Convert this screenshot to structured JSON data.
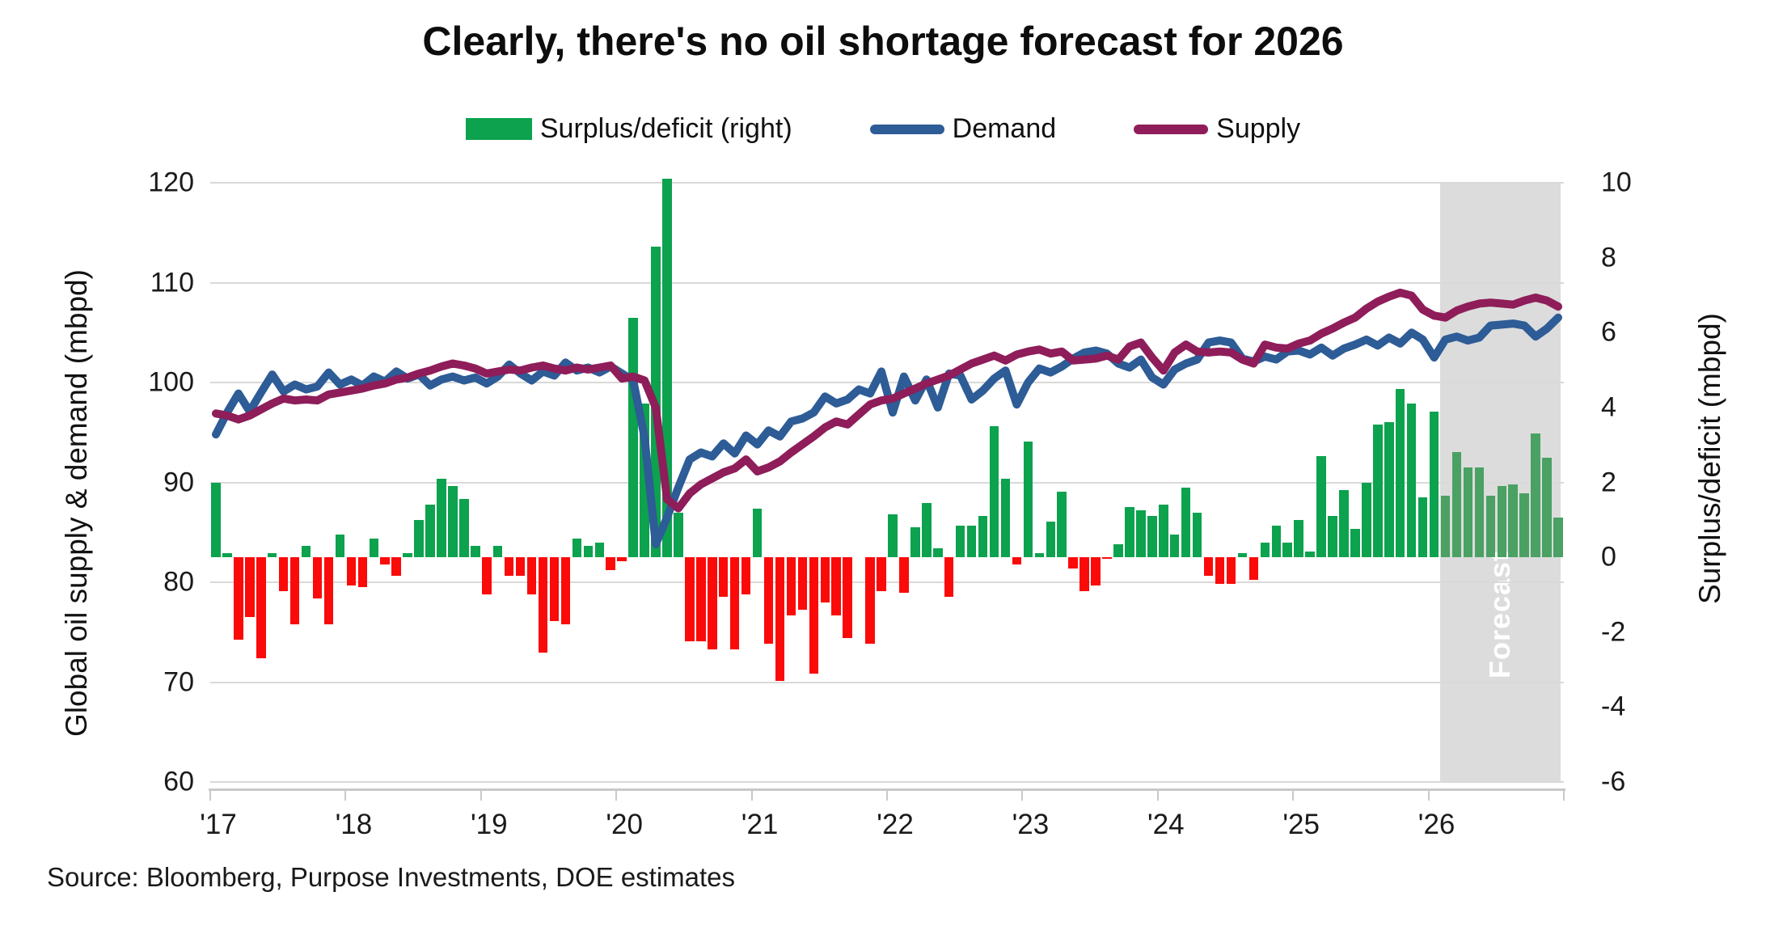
{
  "title": "Clearly, there's no oil shortage forecast for 2026",
  "source": "Source: Bloomberg, Purpose Investments, DOE estimates",
  "legend": {
    "surplus_label": "Surplus/deficit (right)",
    "demand_label": "Demand",
    "supply_label": "Supply"
  },
  "axes": {
    "left_title": "Global oil supply & demand (mbpd)",
    "right_title": "Surplus/deficit (mbpd)",
    "left_ticks": [
      120,
      110,
      100,
      90,
      80,
      70,
      60
    ],
    "right_ticks": [
      10,
      8,
      6,
      4,
      2,
      0,
      -2,
      -4,
      -6
    ],
    "x_tick_labels": [
      "'17",
      "'18",
      "'19",
      "'20",
      "'21",
      "'22",
      "'23",
      "'24",
      "'25",
      "'26"
    ]
  },
  "forecast": {
    "label": "Forecast",
    "start_month_index": 109
  },
  "colors": {
    "green": "#0ca24e",
    "green_forecast": "#4aa163",
    "red": "#fb0a0a",
    "blue": "#2d5c96",
    "purple": "#8e1d5a",
    "band": "#dcdcdc",
    "gridline": "#d9d9d9",
    "axis": "#c9c9c9"
  },
  "chart_data": {
    "type": "combo",
    "x_unit": "month",
    "x_start": "2017-01",
    "x_end": "2026-12",
    "x_tick_labels": [
      "'17",
      "'18",
      "'19",
      "'20",
      "'21",
      "'22",
      "'23",
      "'24",
      "'25",
      "'26"
    ],
    "title": "Clearly, there's no oil shortage forecast for 2026",
    "left_axis": {
      "label": "Global oil supply & demand (mbpd)",
      "range": [
        60,
        120
      ],
      "ticks": [
        60,
        70,
        80,
        90,
        100,
        110,
        120
      ]
    },
    "right_axis": {
      "label": "Surplus/deficit (mbpd)",
      "range": [
        -6,
        10
      ],
      "ticks": [
        -6,
        -4,
        -2,
        0,
        2,
        4,
        6,
        8,
        10
      ]
    },
    "grid": true,
    "legend_position": "top",
    "forecast_start": "2026-02",
    "series": [
      {
        "name": "Surplus/deficit (right)",
        "type": "bar",
        "axis": "right",
        "values": [
          2.0,
          0.1,
          -2.2,
          -1.6,
          -2.7,
          0.1,
          -0.9,
          -1.8,
          0.3,
          -1.1,
          -1.8,
          0.6,
          -0.75,
          -0.8,
          0.5,
          -0.2,
          -0.5,
          0.1,
          1.0,
          1.4,
          2.1,
          1.9,
          1.55,
          0.3,
          -1.0,
          0.3,
          -0.5,
          -0.5,
          -1.0,
          -2.55,
          -1.7,
          -1.8,
          0.5,
          0.3,
          0.4,
          -0.35,
          -0.1,
          6.4,
          4.1,
          8.3,
          10.1,
          1.2,
          -2.25,
          -2.25,
          -2.45,
          -1.05,
          -2.45,
          -1.0,
          1.3,
          -2.3,
          -3.3,
          -1.55,
          -1.4,
          -3.1,
          -1.2,
          -1.55,
          -2.15,
          0.0,
          -2.3,
          -0.9,
          1.15,
          -0.95,
          0.8,
          1.45,
          0.25,
          -1.05,
          0.85,
          0.85,
          1.1,
          3.5,
          2.1,
          -0.2,
          3.1,
          0.1,
          0.95,
          1.75,
          -0.3,
          -0.9,
          -0.75,
          -0.05,
          0.35,
          1.35,
          1.25,
          1.1,
          1.4,
          0.6,
          1.85,
          1.2,
          -0.5,
          -0.7,
          -0.7,
          0.1,
          -0.6,
          0.4,
          0.85,
          0.4,
          1.0,
          0.15,
          2.7,
          1.1,
          1.8,
          0.75,
          2.0,
          3.55,
          3.6,
          4.5,
          4.1,
          1.6,
          3.9,
          1.65,
          2.8,
          2.4,
          2.4,
          1.65,
          1.9,
          1.95,
          1.7,
          3.3,
          2.65,
          1.05
        ]
      },
      {
        "name": "Demand",
        "type": "line",
        "axis": "left",
        "values": [
          94.8,
          97.0,
          98.9,
          97.1,
          99.0,
          100.8,
          99.1,
          99.8,
          99.3,
          99.6,
          101.0,
          99.8,
          100.3,
          99.7,
          100.6,
          100.1,
          101.1,
          100.4,
          100.8,
          99.7,
          100.3,
          100.6,
          100.2,
          100.5,
          99.9,
          100.6,
          101.8,
          100.9,
          100.2,
          101.1,
          100.7,
          102.0,
          101.2,
          101.5,
          101.0,
          101.6,
          100.9,
          100.2,
          94.5,
          83.8,
          86.5,
          89.5,
          92.3,
          93.0,
          92.6,
          93.9,
          92.9,
          94.7,
          93.8,
          95.2,
          94.6,
          96.1,
          96.4,
          97.0,
          98.6,
          97.9,
          98.3,
          99.3,
          98.9,
          101.1,
          97.0,
          100.6,
          98.2,
          100.3,
          97.5,
          100.9,
          100.7,
          98.3,
          99.2,
          100.4,
          101.2,
          97.8,
          100.0,
          101.4,
          101.0,
          101.6,
          102.4,
          103.0,
          103.2,
          102.9,
          101.9,
          101.5,
          102.3,
          100.5,
          99.8,
          101.3,
          101.9,
          102.3,
          104.0,
          104.2,
          104.0,
          102.4,
          102.1,
          102.6,
          102.3,
          103.1,
          103.2,
          102.8,
          103.5,
          102.7,
          103.4,
          103.8,
          104.3,
          103.7,
          104.5,
          103.9,
          105.0,
          104.3,
          102.5,
          104.3,
          104.6,
          104.2,
          104.5,
          105.7,
          105.8,
          105.9,
          105.7,
          104.6,
          105.4,
          106.5
        ]
      },
      {
        "name": "Supply",
        "type": "line",
        "axis": "left",
        "values": [
          96.9,
          96.7,
          96.3,
          96.7,
          97.3,
          97.9,
          98.4,
          98.2,
          98.3,
          98.2,
          98.8,
          99.0,
          99.2,
          99.4,
          99.7,
          99.9,
          100.3,
          100.5,
          100.9,
          101.2,
          101.6,
          101.9,
          101.7,
          101.4,
          100.9,
          101.1,
          101.3,
          101.2,
          101.5,
          101.7,
          101.4,
          101.2,
          101.5,
          101.3,
          101.5,
          101.7,
          100.4,
          100.6,
          100.2,
          97.5,
          88.3,
          87.4,
          88.9,
          89.8,
          90.4,
          91.0,
          91.4,
          92.3,
          91.1,
          91.5,
          92.1,
          93.0,
          93.8,
          94.6,
          95.5,
          96.1,
          95.8,
          96.8,
          97.8,
          98.2,
          98.4,
          98.9,
          99.4,
          99.9,
          100.3,
          100.7,
          101.3,
          101.9,
          102.3,
          102.7,
          102.2,
          102.8,
          103.1,
          103.3,
          102.9,
          103.1,
          102.2,
          102.3,
          102.4,
          102.7,
          102.3,
          103.6,
          104.0,
          102.5,
          101.2,
          103.0,
          103.8,
          103.1,
          103.0,
          103.1,
          103.0,
          102.3,
          101.9,
          103.8,
          103.5,
          103.4,
          103.9,
          104.2,
          104.9,
          105.4,
          106.0,
          106.5,
          107.4,
          108.1,
          108.6,
          109.0,
          108.7,
          107.3,
          106.7,
          106.5,
          107.2,
          107.6,
          107.9,
          108.0,
          107.9,
          107.8,
          108.2,
          108.5,
          108.2,
          107.6
        ]
      }
    ]
  }
}
